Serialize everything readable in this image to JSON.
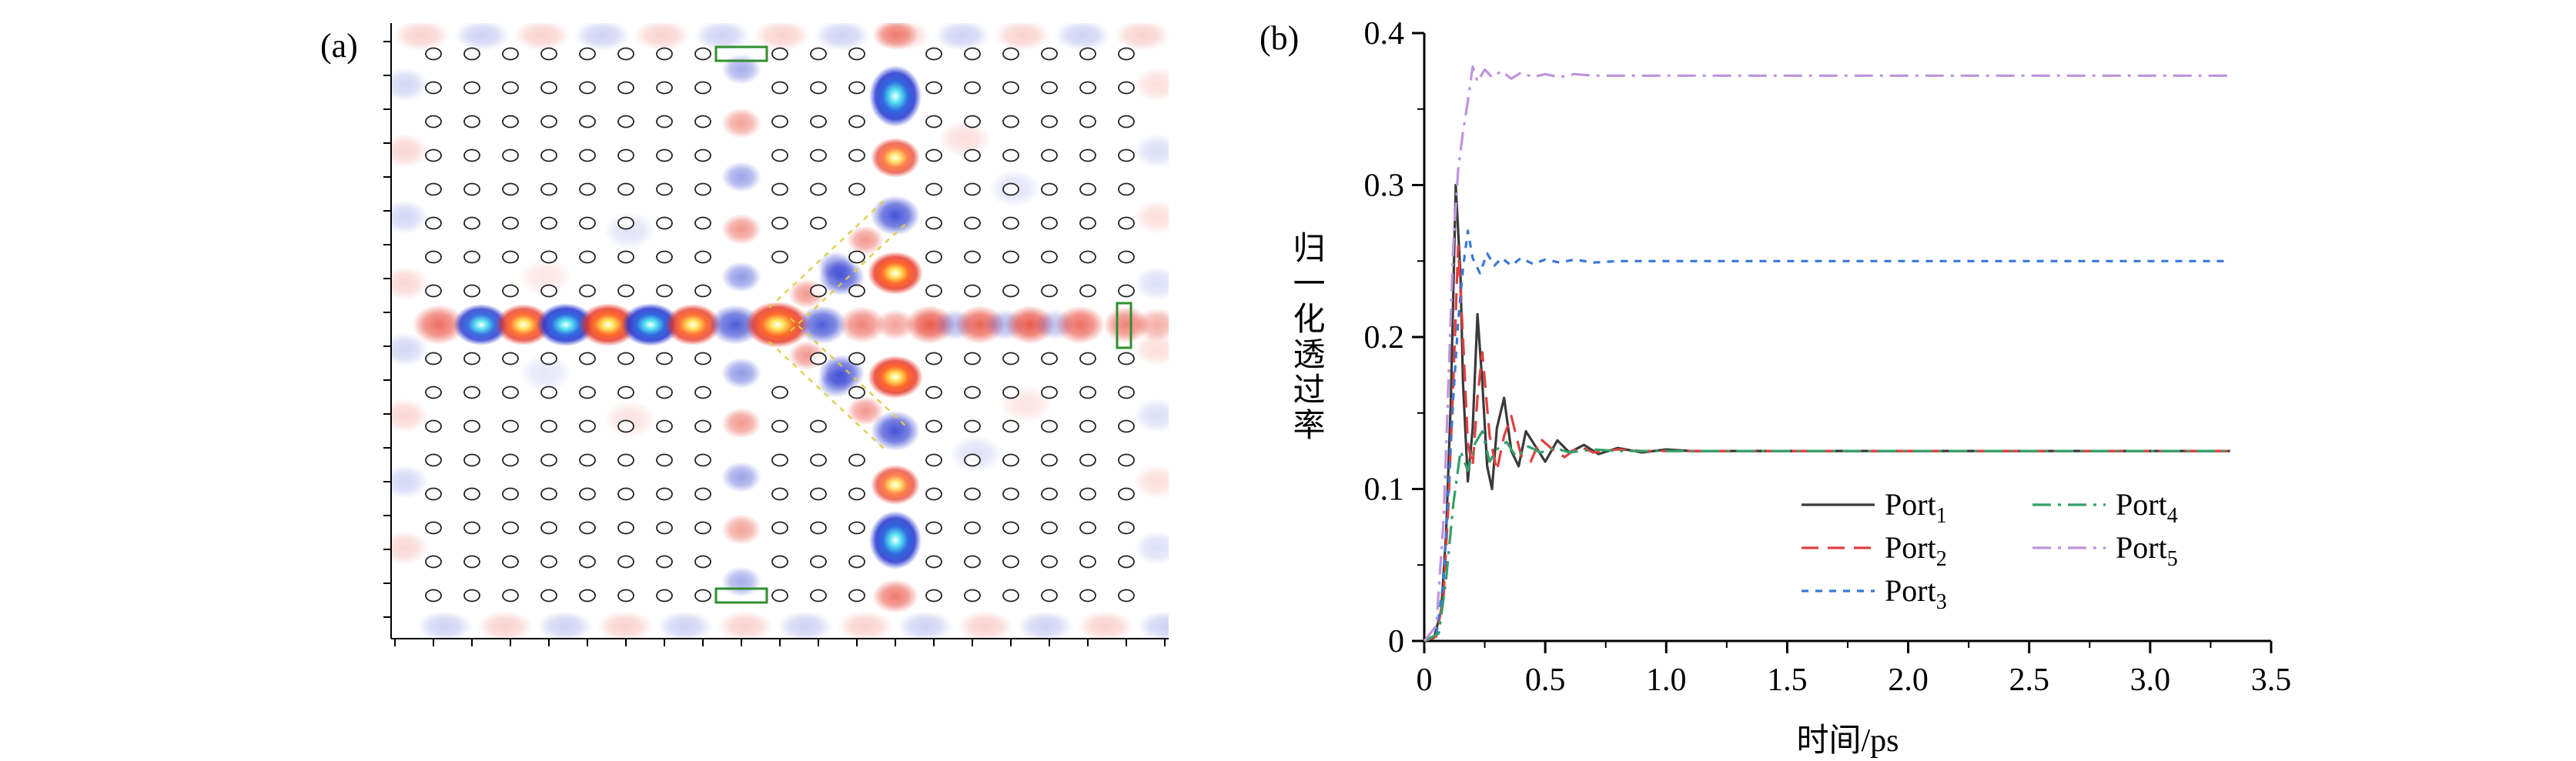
{
  "figure": {
    "panel_a": {
      "label": "(a)",
      "field_positive_color": "#e6301f",
      "field_negative_color": "#2333cf",
      "monitor_color": "#2f8f2f",
      "guide_line_color": "#ddcc44"
    },
    "panel_b": {
      "label": "(b)"
    }
  },
  "chart_data": {
    "type": "line",
    "title": "",
    "xlabel": "时间/ps",
    "ylabel": "归一化透过率",
    "xlim": [
      0,
      3.5
    ],
    "ylim": [
      0,
      0.4
    ],
    "xticks": [
      0,
      0.5,
      1,
      1.5,
      2,
      2.5,
      3,
      3.5
    ],
    "xtick_labels": [
      "0",
      "0.5",
      "1.0",
      "1.5",
      "2.0",
      "2.5",
      "3.0",
      "3.5"
    ],
    "yticks": [
      0,
      0.1,
      0.2,
      0.3,
      0.4
    ],
    "ytick_labels": [
      "0",
      "0.1",
      "0.2",
      "0.3",
      "0.4"
    ],
    "grid": false,
    "legend_position": "inside-bottom-right",
    "series": [
      {
        "name": "Port",
        "sub": "1",
        "key": "port1",
        "color": "#3a3a3a",
        "dash": "none",
        "steady_state": 0.125,
        "points": [
          [
            0,
            0
          ],
          [
            0.04,
            0.002
          ],
          [
            0.07,
            0.02
          ],
          [
            0.09,
            0.07
          ],
          [
            0.11,
            0.16
          ],
          [
            0.13,
            0.3
          ],
          [
            0.15,
            0.24
          ],
          [
            0.16,
            0.17
          ],
          [
            0.18,
            0.105
          ],
          [
            0.2,
            0.14
          ],
          [
            0.22,
            0.215
          ],
          [
            0.24,
            0.17
          ],
          [
            0.26,
            0.115
          ],
          [
            0.28,
            0.1
          ],
          [
            0.3,
            0.14
          ],
          [
            0.33,
            0.16
          ],
          [
            0.36,
            0.125
          ],
          [
            0.39,
            0.115
          ],
          [
            0.42,
            0.138
          ],
          [
            0.46,
            0.128
          ],
          [
            0.5,
            0.118
          ],
          [
            0.55,
            0.132
          ],
          [
            0.6,
            0.124
          ],
          [
            0.66,
            0.129
          ],
          [
            0.72,
            0.123
          ],
          [
            0.8,
            0.127
          ],
          [
            0.9,
            0.124
          ],
          [
            1,
            0.126
          ],
          [
            1.1,
            0.125
          ],
          [
            1.25,
            0.125
          ],
          [
            1.5,
            0.125
          ],
          [
            1.75,
            0.125
          ],
          [
            2,
            0.125
          ],
          [
            2.25,
            0.125
          ],
          [
            2.5,
            0.125
          ],
          [
            2.75,
            0.125
          ],
          [
            3,
            0.125
          ],
          [
            3.33,
            0.125
          ]
        ]
      },
      {
        "name": "Port",
        "sub": "2",
        "key": "port2",
        "color": "#e04040",
        "dash": "22 12",
        "steady_state": 0.125,
        "points": [
          [
            0,
            0
          ],
          [
            0.05,
            0.003
          ],
          [
            0.08,
            0.03
          ],
          [
            0.1,
            0.09
          ],
          [
            0.12,
            0.17
          ],
          [
            0.14,
            0.26
          ],
          [
            0.16,
            0.2
          ],
          [
            0.18,
            0.13
          ],
          [
            0.2,
            0.115
          ],
          [
            0.22,
            0.16
          ],
          [
            0.24,
            0.19
          ],
          [
            0.27,
            0.135
          ],
          [
            0.3,
            0.112
          ],
          [
            0.33,
            0.135
          ],
          [
            0.36,
            0.148
          ],
          [
            0.4,
            0.122
          ],
          [
            0.44,
            0.118
          ],
          [
            0.48,
            0.133
          ],
          [
            0.53,
            0.126
          ],
          [
            0.58,
            0.121
          ],
          [
            0.64,
            0.128
          ],
          [
            0.7,
            0.124
          ],
          [
            0.8,
            0.126
          ],
          [
            0.9,
            0.125
          ],
          [
            1,
            0.125
          ],
          [
            1.25,
            0.125
          ],
          [
            1.5,
            0.125
          ],
          [
            2,
            0.125
          ],
          [
            2.5,
            0.125
          ],
          [
            3,
            0.125
          ],
          [
            3.33,
            0.125
          ]
        ]
      },
      {
        "name": "Port",
        "sub": "3",
        "key": "port3",
        "color": "#3b78d8",
        "dash": "9 9",
        "steady_state": 0.25,
        "points": [
          [
            0,
            0
          ],
          [
            0.05,
            0.004
          ],
          [
            0.08,
            0.04
          ],
          [
            0.1,
            0.1
          ],
          [
            0.12,
            0.16
          ],
          [
            0.14,
            0.21
          ],
          [
            0.16,
            0.245
          ],
          [
            0.18,
            0.27
          ],
          [
            0.2,
            0.252
          ],
          [
            0.23,
            0.242
          ],
          [
            0.26,
            0.255
          ],
          [
            0.29,
            0.247
          ],
          [
            0.32,
            0.252
          ],
          [
            0.36,
            0.247
          ],
          [
            0.4,
            0.252
          ],
          [
            0.45,
            0.248
          ],
          [
            0.5,
            0.251
          ],
          [
            0.56,
            0.249
          ],
          [
            0.62,
            0.251
          ],
          [
            0.7,
            0.249
          ],
          [
            0.8,
            0.25
          ],
          [
            0.9,
            0.25
          ],
          [
            1,
            0.25
          ],
          [
            1.25,
            0.25
          ],
          [
            1.5,
            0.25
          ],
          [
            2,
            0.25
          ],
          [
            2.5,
            0.25
          ],
          [
            3,
            0.25
          ],
          [
            3.33,
            0.25
          ]
        ]
      },
      {
        "name": "Port",
        "sub": "4",
        "key": "port4",
        "color": "#35a06a",
        "dash": "24 9 4 9",
        "steady_state": 0.125,
        "points": [
          [
            0,
            0
          ],
          [
            0.06,
            0.005
          ],
          [
            0.09,
            0.04
          ],
          [
            0.12,
            0.09
          ],
          [
            0.15,
            0.125
          ],
          [
            0.18,
            0.112
          ],
          [
            0.21,
            0.13
          ],
          [
            0.24,
            0.138
          ],
          [
            0.27,
            0.118
          ],
          [
            0.3,
            0.126
          ],
          [
            0.34,
            0.131
          ],
          [
            0.38,
            0.121
          ],
          [
            0.43,
            0.128
          ],
          [
            0.48,
            0.124
          ],
          [
            0.54,
            0.127
          ],
          [
            0.6,
            0.124
          ],
          [
            0.7,
            0.126
          ],
          [
            0.8,
            0.125
          ],
          [
            1,
            0.125
          ],
          [
            1.25,
            0.125
          ],
          [
            1.5,
            0.125
          ],
          [
            2,
            0.125
          ],
          [
            2.5,
            0.125
          ],
          [
            3,
            0.125
          ],
          [
            3.33,
            0.125
          ]
        ]
      },
      {
        "name": "Port",
        "sub": "5",
        "key": "port5",
        "color": "#bf93db",
        "dash": "24 9 4 9",
        "steady_state": 0.372,
        "points": [
          [
            0,
            0
          ],
          [
            0.05,
            0.01
          ],
          [
            0.08,
            0.08
          ],
          [
            0.1,
            0.17
          ],
          [
            0.12,
            0.26
          ],
          [
            0.14,
            0.31
          ],
          [
            0.16,
            0.335
          ],
          [
            0.18,
            0.355
          ],
          [
            0.2,
            0.378
          ],
          [
            0.22,
            0.368
          ],
          [
            0.25,
            0.376
          ],
          [
            0.28,
            0.371
          ],
          [
            0.32,
            0.375
          ],
          [
            0.36,
            0.37
          ],
          [
            0.4,
            0.374
          ],
          [
            0.45,
            0.371
          ],
          [
            0.5,
            0.373
          ],
          [
            0.56,
            0.371
          ],
          [
            0.62,
            0.373
          ],
          [
            0.7,
            0.372
          ],
          [
            0.8,
            0.372
          ],
          [
            1,
            0.372
          ],
          [
            1.25,
            0.372
          ],
          [
            1.5,
            0.372
          ],
          [
            2,
            0.372
          ],
          [
            2.5,
            0.372
          ],
          [
            3,
            0.372
          ],
          [
            3.33,
            0.372
          ]
        ]
      }
    ]
  }
}
